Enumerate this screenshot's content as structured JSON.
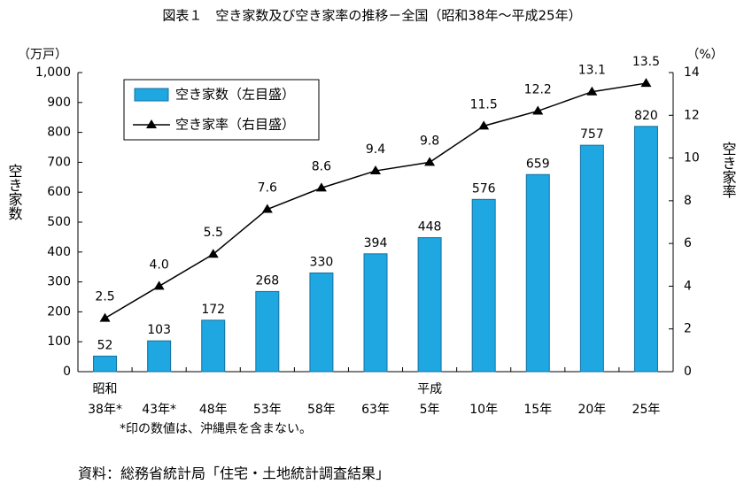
{
  "chart_data": {
    "type": "bar",
    "title": "図表１　空き家数及び空き家率の推移－全国（昭和38年～平成25年）",
    "y_unit": "（万戸）",
    "y2_unit": "（%）",
    "y_label": "空き家数",
    "y2_label": "空き家率",
    "categories": [
      "38年*",
      "43年*",
      "48年",
      "53年",
      "58年",
      "63年",
      "5年",
      "10年",
      "15年",
      "20年",
      "25年"
    ],
    "category_groups": [
      {
        "label": "昭和",
        "start": 0
      },
      {
        "label": "平成",
        "start": 6
      }
    ],
    "series": [
      {
        "name": "空き家数（左目盛）",
        "type": "bar",
        "color": "#1ea7e1",
        "values": [
          52,
          103,
          172,
          268,
          330,
          394,
          448,
          576,
          659,
          757,
          820
        ]
      },
      {
        "name": "空き家率（右目盛）",
        "type": "line",
        "color": "#000000",
        "axis": "y2",
        "values": [
          2.5,
          4.0,
          5.5,
          7.6,
          8.6,
          9.4,
          9.8,
          11.5,
          12.2,
          13.1,
          13.5
        ],
        "value_labels": [
          "2.5",
          "4.0",
          "5.5",
          "7.6",
          "8.6",
          "9.4",
          "9.8",
          "11.5",
          "12.2",
          "13.1",
          "13.5"
        ]
      }
    ],
    "ylim": [
      0,
      1000
    ],
    "yticks": [
      0,
      100,
      200,
      300,
      400,
      500,
      600,
      700,
      800,
      900,
      {
        "value": 1000,
        "label": "1,000"
      }
    ],
    "y2lim": [
      0,
      14
    ],
    "y2ticks": [
      0,
      2,
      4,
      6,
      8,
      10,
      12,
      14
    ],
    "footnote": "*印の数値は、沖縄県を含まない。",
    "source": "資料：総務省統計局「住宅・土地統計調査結果」"
  }
}
